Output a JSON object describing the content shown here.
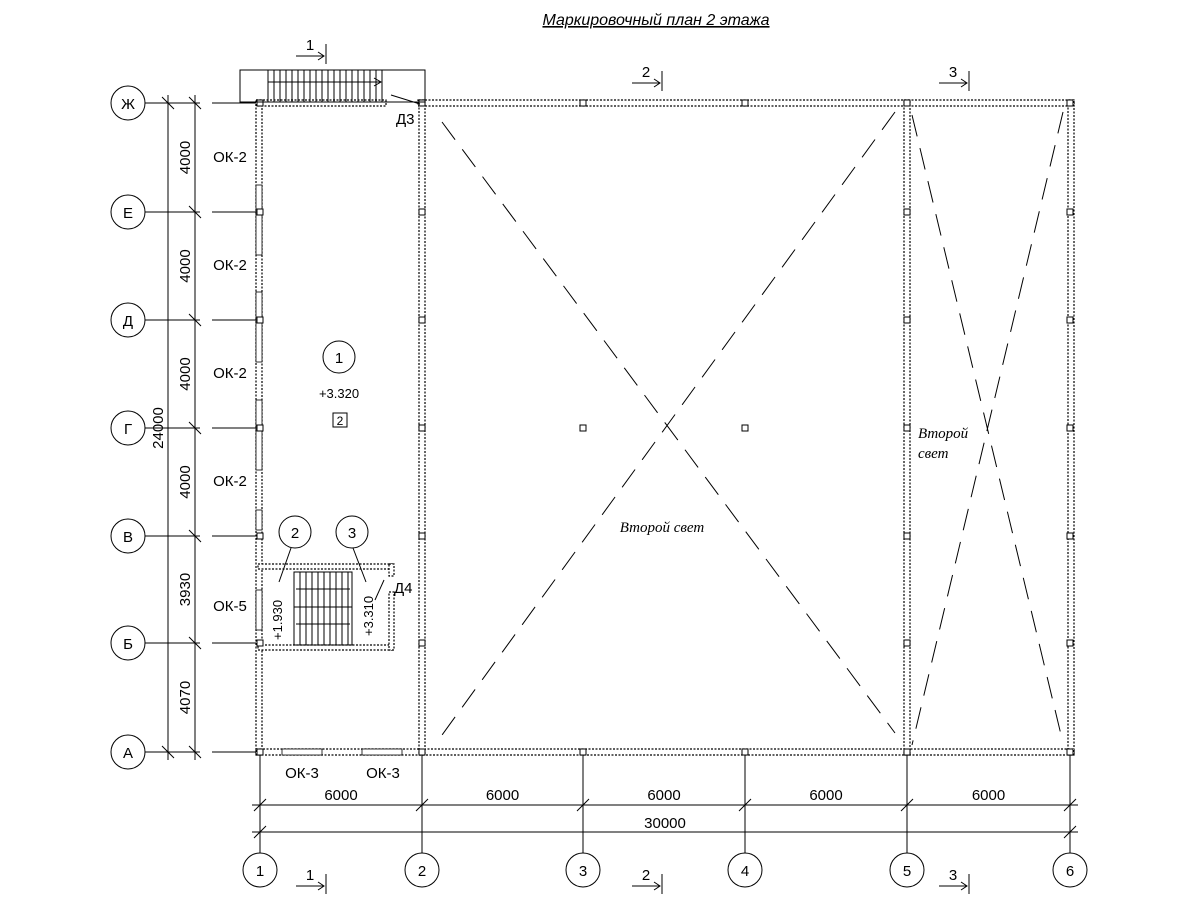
{
  "title": "Маркировочный план 2 этажа",
  "row_axes": [
    "Ж",
    "Е",
    "Д",
    "Г",
    "В",
    "Б",
    "А"
  ],
  "column_axes": [
    "1",
    "2",
    "3",
    "4",
    "5",
    "6"
  ],
  "row_dimensions": [
    "4000",
    "4000",
    "4000",
    "4000",
    "3930",
    "4070"
  ],
  "row_total": "24000",
  "column_dimensions": [
    "6000",
    "6000",
    "6000",
    "6000",
    "6000"
  ],
  "column_total": "30000",
  "sections": {
    "s1": "1",
    "s2": "2",
    "s3": "3"
  },
  "windows": {
    "ok2": "ОК-2",
    "ok5": "ОК-5",
    "ok3": "ОК-3"
  },
  "doors": {
    "d3": "Д3",
    "d4": "Д4"
  },
  "rooms": {
    "room1": {
      "number": "1",
      "level": "+3.320",
      "tag": "2"
    },
    "room2": {
      "number": "2",
      "level": "+1.930"
    },
    "room3": {
      "number": "3",
      "level": "+3.310"
    }
  },
  "double_height": {
    "main": "Второй свет",
    "side_line1": "Второй",
    "side_line2": "свет"
  }
}
